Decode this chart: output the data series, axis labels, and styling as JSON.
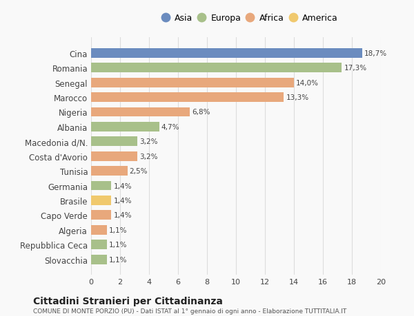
{
  "countries": [
    "Cina",
    "Romania",
    "Senegal",
    "Marocco",
    "Nigeria",
    "Albania",
    "Macedonia d/N.",
    "Costa d'Avorio",
    "Tunisia",
    "Germania",
    "Brasile",
    "Capo Verde",
    "Algeria",
    "Repubblica Ceca",
    "Slovacchia"
  ],
  "values": [
    18.7,
    17.3,
    14.0,
    13.3,
    6.8,
    4.7,
    3.2,
    3.2,
    2.5,
    1.4,
    1.4,
    1.4,
    1.1,
    1.1,
    1.1
  ],
  "labels": [
    "18,7%",
    "17,3%",
    "14,0%",
    "13,3%",
    "6,8%",
    "4,7%",
    "3,2%",
    "3,2%",
    "2,5%",
    "1,4%",
    "1,4%",
    "1,4%",
    "1,1%",
    "1,1%",
    "1,1%"
  ],
  "colors": [
    "#6b8cbf",
    "#a8c08a",
    "#e8a87c",
    "#e8a87c",
    "#e8a87c",
    "#a8c08a",
    "#a8c08a",
    "#e8a87c",
    "#e8a87c",
    "#a8c08a",
    "#f0c96e",
    "#e8a87c",
    "#e8a87c",
    "#a8c08a",
    "#a8c08a"
  ],
  "continent_colors": {
    "Asia": "#6b8cbf",
    "Europa": "#a8c08a",
    "Africa": "#e8a87c",
    "America": "#f0c96e"
  },
  "legend_labels": [
    "Asia",
    "Europa",
    "Africa",
    "America"
  ],
  "xlim": [
    0,
    20
  ],
  "xticks": [
    0,
    2,
    4,
    6,
    8,
    10,
    12,
    14,
    16,
    18,
    20
  ],
  "title": "Cittadini Stranieri per Cittadinanza",
  "subtitle": "COMUNE DI MONTE PORZIO (PU) - Dati ISTAT al 1° gennaio di ogni anno - Elaborazione TUTTITALIA.IT",
  "background_color": "#f9f9f9",
  "grid_color": "#dddddd",
  "bar_height": 0.65
}
